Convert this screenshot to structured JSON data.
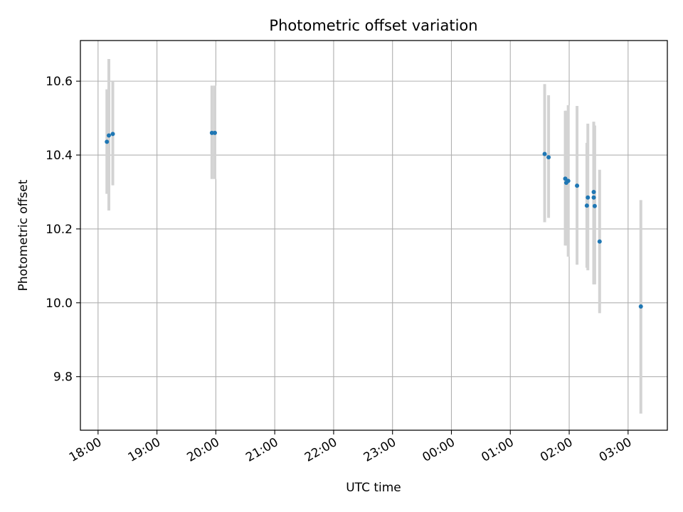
{
  "chart_data": {
    "type": "scatter",
    "title": "Photometric offset variation",
    "xlabel": "UTC time",
    "ylabel": "Photometric offset",
    "grid": true,
    "legend": "none",
    "colors": {
      "points": "#1f77b4",
      "errorbars": "#d3d3d3",
      "grid": "#b0b0b0"
    },
    "xlim": [
      "2020-01-01T17:42",
      "2020-01-02T03:40"
    ],
    "ylim": [
      9.655,
      10.71
    ],
    "xticks": [
      {
        "t": "2020-01-01T18:00",
        "label": "18:00"
      },
      {
        "t": "2020-01-01T19:00",
        "label": "19:00"
      },
      {
        "t": "2020-01-01T20:00",
        "label": "20:00"
      },
      {
        "t": "2020-01-01T21:00",
        "label": "21:00"
      },
      {
        "t": "2020-01-01T22:00",
        "label": "22:00"
      },
      {
        "t": "2020-01-01T23:00",
        "label": "23:00"
      },
      {
        "t": "2020-01-02T00:00",
        "label": "00:00"
      },
      {
        "t": "2020-01-02T01:00",
        "label": "01:00"
      },
      {
        "t": "2020-01-02T02:00",
        "label": "02:00"
      },
      {
        "t": "2020-01-02T03:00",
        "label": "03:00"
      }
    ],
    "yticks": [
      {
        "v": 9.8,
        "label": "9.8"
      },
      {
        "v": 10.0,
        "label": "10.0"
      },
      {
        "v": 10.2,
        "label": "10.2"
      },
      {
        "v": 10.4,
        "label": "10.4"
      },
      {
        "v": 10.6,
        "label": "10.6"
      }
    ],
    "points": [
      {
        "t": "2020-01-01T18:09",
        "y": 10.436,
        "lo": 10.295,
        "hi": 10.578
      },
      {
        "t": "2020-01-01T18:11",
        "y": 10.453,
        "lo": 10.25,
        "hi": 10.66
      },
      {
        "t": "2020-01-01T18:15",
        "y": 10.457,
        "lo": 10.318,
        "hi": 10.6
      },
      {
        "t": "2020-01-01T19:56",
        "y": 10.46,
        "lo": 10.335,
        "hi": 10.588
      },
      {
        "t": "2020-01-01T19:59",
        "y": 10.46,
        "lo": 10.335,
        "hi": 10.588
      },
      {
        "t": "2020-01-02T01:35",
        "y": 10.403,
        "lo": 10.218,
        "hi": 10.592
      },
      {
        "t": "2020-01-02T01:39",
        "y": 10.394,
        "lo": 10.23,
        "hi": 10.562
      },
      {
        "t": "2020-01-02T01:56",
        "y": 10.336,
        "lo": 10.155,
        "hi": 10.52
      },
      {
        "t": "2020-01-02T01:57",
        "y": 10.325,
        "lo": 10.155,
        "hi": 10.52
      },
      {
        "t": "2020-01-02T01:59",
        "y": 10.33,
        "lo": 10.125,
        "hi": 10.535
      },
      {
        "t": "2020-01-02T02:08",
        "y": 10.317,
        "lo": 10.103,
        "hi": 10.533
      },
      {
        "t": "2020-01-02T02:18",
        "y": 10.263,
        "lo": 10.095,
        "hi": 10.433
      },
      {
        "t": "2020-01-02T02:19",
        "y": 10.285,
        "lo": 10.088,
        "hi": 10.485
      },
      {
        "t": "2020-01-02T02:25",
        "y": 10.3,
        "lo": 10.05,
        "hi": 10.49
      },
      {
        "t": "2020-01-02T02:25",
        "y": 10.285,
        "lo": 10.05,
        "hi": 10.49
      },
      {
        "t": "2020-01-02T02:26",
        "y": 10.262,
        "lo": 10.05,
        "hi": 10.48
      },
      {
        "t": "2020-01-02T02:31",
        "y": 10.166,
        "lo": 9.972,
        "hi": 10.36
      },
      {
        "t": "2020-01-02T03:13",
        "y": 9.99,
        "lo": 9.7,
        "hi": 10.278
      }
    ]
  }
}
